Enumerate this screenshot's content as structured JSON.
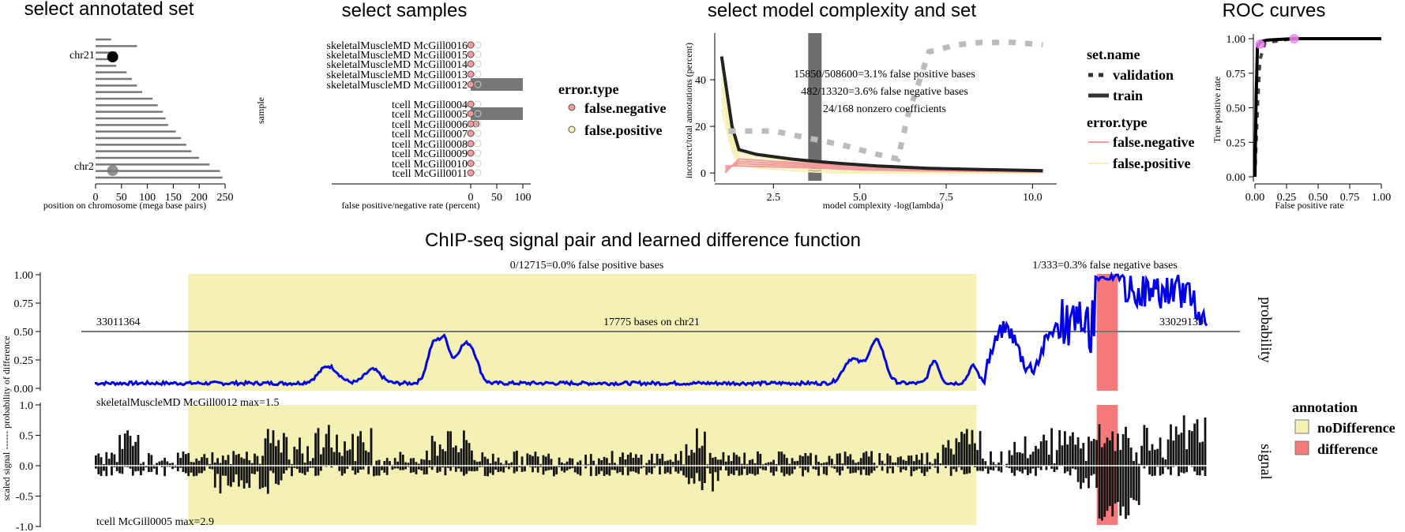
{
  "titles": {
    "annotated": "select annotated set",
    "samples": "select samples",
    "complexity": "select model complexity and set",
    "roc": "ROC curves",
    "chipseq": "ChIP-seq signal pair and learned difference function"
  },
  "colors": {
    "noDifference": "#f5f0b4",
    "difference": "#f77a7a",
    "probability": "#0000e6",
    "signal": "#141414",
    "fp_line": "#f5f0b4",
    "fn_line": "#f39a9a",
    "roc_point": "#ee82ee"
  },
  "chart_data": [
    {
      "type": "bar",
      "name": "annotated-set",
      "title": "select annotated set",
      "xlabel": "position on chromosome (mega base pairs)",
      "ylabel": "",
      "xlim": [
        0,
        250
      ],
      "xticks": [
        "0",
        "50",
        "100",
        "150",
        "200",
        "250"
      ],
      "chromosomes": [
        "chr21",
        "chr2"
      ],
      "segments": [
        {
          "x0": 0,
          "x1": 30
        },
        {
          "x0": 0,
          "x1": 80
        },
        {
          "x0": 0,
          "x1": 40
        },
        {
          "x0": 0,
          "x1": 30
        },
        {
          "x0": 0,
          "x1": 40
        },
        {
          "x0": 0,
          "x1": 60
        },
        {
          "x0": 0,
          "x1": 70
        },
        {
          "x0": 0,
          "x1": 80
        },
        {
          "x0": 0,
          "x1": 90
        },
        {
          "x0": 0,
          "x1": 110
        },
        {
          "x0": 0,
          "x1": 120
        },
        {
          "x0": 0,
          "x1": 130
        },
        {
          "x0": 0,
          "x1": 135
        },
        {
          "x0": 0,
          "x1": 140
        },
        {
          "x0": 0,
          "x1": 155
        },
        {
          "x0": 0,
          "x1": 165
        },
        {
          "x0": 0,
          "x1": 175
        },
        {
          "x0": 0,
          "x1": 185
        },
        {
          "x0": 0,
          "x1": 200
        },
        {
          "x0": 0,
          "x1": 220
        },
        {
          "x0": 0,
          "x1": 240
        },
        {
          "x0": 0,
          "x1": 245
        }
      ],
      "selected_points": [
        {
          "chrom": "chr21",
          "x": 33,
          "style": "black"
        },
        {
          "chrom": "chr2",
          "x": 33,
          "style": "grey"
        }
      ]
    },
    {
      "type": "bar",
      "name": "samples",
      "title": "select samples",
      "xlabel": "false positive/negative rate (percent)",
      "ylabel": "sample",
      "xlim": [
        0,
        100
      ],
      "xticks": [
        "0",
        "50",
        "100"
      ],
      "samples": [
        {
          "label": "skeletalMuscleMD McGill0016",
          "selected": false,
          "value": 0
        },
        {
          "label": "skeletalMuscleMD McGill0015",
          "selected": false,
          "value": 0
        },
        {
          "label": "skeletalMuscleMD McGill0014",
          "selected": false,
          "value": 0
        },
        {
          "label": "skeletalMuscleMD McGill0013",
          "selected": false,
          "value": 0
        },
        {
          "label": "skeletalMuscleMD McGill0012",
          "selected": true,
          "value": 100
        },
        {
          "label": "tcell McGill0004",
          "selected": false,
          "value": 0
        },
        {
          "label": "tcell McGill0005",
          "selected": true,
          "value": 100
        },
        {
          "label": "tcell McGill0006",
          "selected": false,
          "value": 10
        },
        {
          "label": "tcell McGill0007",
          "selected": false,
          "value": 0
        },
        {
          "label": "tcell McGill0008",
          "selected": false,
          "value": 0
        },
        {
          "label": "tcell McGill0009",
          "selected": false,
          "value": 0
        },
        {
          "label": "tcell McGill0010",
          "selected": false,
          "value": 0
        },
        {
          "label": "tcell McGill0011",
          "selected": false,
          "value": 0
        }
      ],
      "legend": {
        "title": "error.type",
        "entries": [
          "false.negative",
          "false.positive"
        ]
      }
    },
    {
      "type": "line",
      "name": "model-complexity",
      "title": "select model complexity and set",
      "xlabel": "model complexity -log(lambda)",
      "ylabel": "incorrect/total annotations (percent)",
      "xlim": [
        0.8,
        10.7
      ],
      "ylim": [
        -3,
        60
      ],
      "xticks": [
        2.5,
        5.0,
        7.5,
        10.0
      ],
      "xtick_labels": [
        "2.5",
        "5.0",
        "7.5",
        "10.0"
      ],
      "yticks": [
        0,
        20,
        40
      ],
      "ytick_labels": [
        "0",
        "20",
        "40"
      ],
      "selected_x": 3.7,
      "annotations": [
        "15850/508600=3.1% false positive bases",
        "482/13320=3.6% false negative bases",
        "24/168 nonzero coefficients"
      ],
      "series": [
        {
          "name": "validation",
          "style": "dashed",
          "x": [
            1.2,
            1.6,
            2.5,
            3.5,
            4.5,
            5.5,
            6.1,
            6.4,
            7.0,
            7.8,
            8.5,
            9.5,
            10.3
          ],
          "y": [
            18,
            18,
            18,
            15,
            12,
            8,
            6,
            25,
            52,
            55,
            56,
            56,
            55
          ]
        },
        {
          "name": "train",
          "style": "solid",
          "x": [
            1.0,
            1.1,
            1.3,
            1.5,
            2.0,
            2.5,
            3.0,
            3.7,
            4.5,
            5.5,
            7.0,
            8.5,
            10.3
          ],
          "y": [
            50,
            40,
            20,
            10,
            8,
            7,
            6,
            5,
            4,
            3,
            2,
            1.5,
            1
          ]
        }
      ],
      "legend": {
        "set_title": "set.name",
        "set_entries": [
          "validation",
          "train"
        ],
        "error_title": "error.type",
        "error_entries": [
          "false.negative",
          "false.positive"
        ]
      }
    },
    {
      "type": "line",
      "name": "roc",
      "title": "ROC curves",
      "xlabel": "False positive rate",
      "ylabel": "True positive rate",
      "xlim": [
        0,
        1
      ],
      "ylim": [
        0,
        1
      ],
      "xticks": [
        "0.00",
        "0.25",
        "0.50",
        "0.75",
        "1.00"
      ],
      "yticks": [
        "0.00",
        "0.25",
        "0.50",
        "0.75",
        "1.00"
      ],
      "series": [
        {
          "name": "train",
          "style": "solid",
          "x": [
            0,
            0.01,
            0.02,
            0.05,
            0.1,
            0.3,
            0.6,
            1.0
          ],
          "y": [
            0,
            0.6,
            0.95,
            0.98,
            0.99,
            1.0,
            1.0,
            1.0
          ]
        },
        {
          "name": "validation",
          "style": "dashed",
          "x": [
            0,
            0.02,
            0.04,
            0.08,
            0.3,
            0.6,
            1.0
          ],
          "y": [
            0,
            0.5,
            0.85,
            0.97,
            1.0,
            1.0,
            1.0
          ]
        }
      ],
      "points": [
        {
          "x": 0.04,
          "y": 0.96
        },
        {
          "x": 0.31,
          "y": 1.0
        }
      ]
    },
    {
      "type": "line",
      "name": "chipseq",
      "title": "ChIP-seq signal pair and learned difference function",
      "ylabel": "scaled signal ------ probability of difference",
      "xlim": [
        33011364,
        33029139
      ],
      "prob_yticks": [
        "1.00",
        "0.75",
        "0.50",
        "0.25",
        "0.00"
      ],
      "signal_yticks": [
        "1.0",
        "0.5",
        "0.0",
        "-0.5",
        "-1.0"
      ],
      "left_pos_label": "33011364",
      "right_pos_label": "33029139",
      "center_label": "17775 bases on chr21",
      "fp_label": "0/12715=0.0% false positive bases",
      "fn_label": "1/333=0.3% false negative bases",
      "top_sample": "skeletalMuscleMD McGill0012 max=1.5",
      "bottom_sample": "tcell McGill0005 max=2.9",
      "facet_prob": "probability",
      "facet_signal": "signal",
      "threshold": 0.5,
      "annotations": [
        {
          "type": "noDifference",
          "start": 0.084,
          "end": 0.793
        },
        {
          "type": "difference",
          "start": 0.901,
          "end": 0.92
        }
      ],
      "legend": {
        "title": "annotation",
        "entries": [
          "noDifference",
          "difference"
        ]
      }
    }
  ]
}
